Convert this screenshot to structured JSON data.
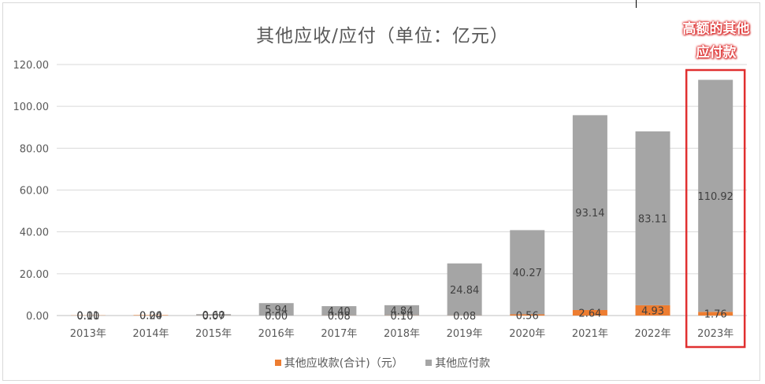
{
  "chart_data": {
    "type": "bar",
    "stacked": true,
    "title": "其他应收/应付（单位：亿元）",
    "categories": [
      "2013年",
      "2014年",
      "2015年",
      "2016年",
      "2017年",
      "2018年",
      "2019年",
      "2020年",
      "2021年",
      "2022年",
      "2023年"
    ],
    "series": [
      {
        "name": "其他应收款(合计)（元）",
        "color": "#ed7d31",
        "values": [
          0.1,
          0.2,
          0.07,
          0.0,
          0.08,
          0.1,
          0.08,
          0.56,
          2.64,
          4.93,
          1.76
        ],
        "labels": [
          "0.10",
          "0.20",
          "0.07",
          "0.00",
          "0.08",
          "0.10",
          "0.08",
          "0.56",
          "2.64",
          "4.93",
          "1.76"
        ]
      },
      {
        "name": "其他应付款",
        "color": "#a5a5a5",
        "values": [
          0.01,
          0.04,
          0.6,
          5.94,
          4.4,
          4.84,
          24.84,
          40.27,
          93.14,
          83.11,
          110.92
        ],
        "labels": [
          "0.01",
          "0.04",
          "0.60",
          "5.94",
          "4.40",
          "4.84",
          "24.84",
          "40.27",
          "93.14",
          "83.11",
          "110.92"
        ]
      }
    ],
    "ylim": [
      0,
      120
    ],
    "yticks": [
      "0.00",
      "20.00",
      "40.00",
      "60.00",
      "80.00",
      "100.00",
      "120.00"
    ],
    "grid": true,
    "legend_position": "bottom",
    "annotation": {
      "text_line1": "高额的其他",
      "text_line2": "应付款",
      "highlight_category": "2023年",
      "color": "#e03030"
    }
  }
}
